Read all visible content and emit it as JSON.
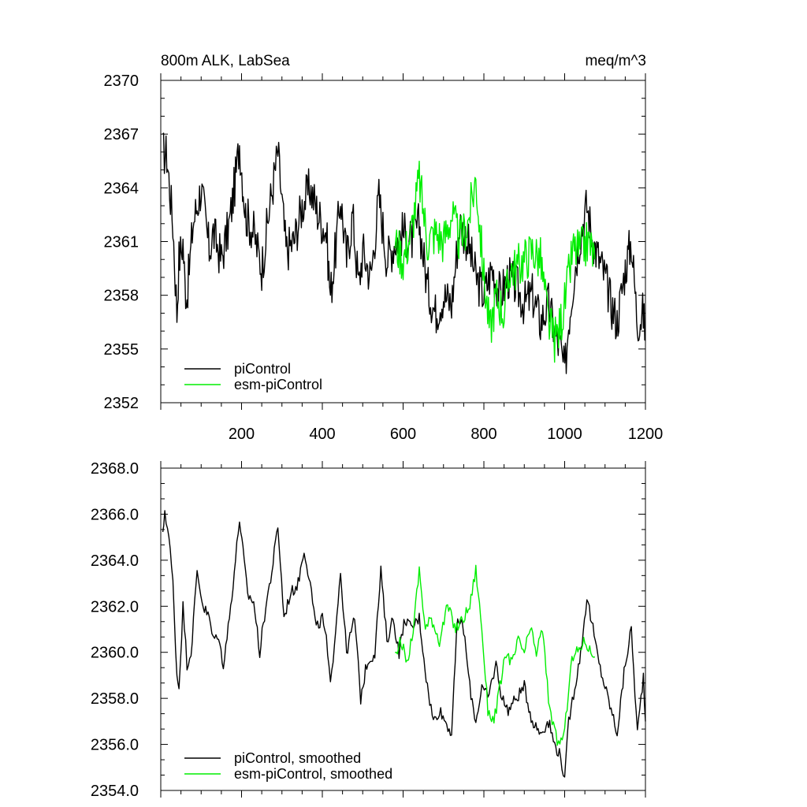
{
  "chart_data": [
    {
      "type": "line",
      "title_left": "800m ALK, LabSea",
      "title_right": "meq/m^3",
      "xlim": [
        0,
        1200
      ],
      "ylim": [
        2352,
        2370
      ],
      "xticks": [
        200,
        400,
        600,
        800,
        1000,
        1200
      ],
      "xtick_labels": [
        "200",
        "400",
        "600",
        "800",
        "1000",
        "1200"
      ],
      "yticks": [
        2352,
        2355,
        2358,
        2361,
        2364,
        2367,
        2370
      ],
      "ytick_labels": [
        "2352",
        "2355",
        "2358",
        "2361",
        "2364",
        "2367",
        "2370"
      ],
      "legend_position": "bottom-left",
      "series": [
        {
          "name": "piControl",
          "color": "#000000",
          "points": [
            [
              5,
              2366.0
            ],
            [
              15,
              2365.8
            ],
            [
              20,
              2364.5
            ],
            [
              30,
              2362.0
            ],
            [
              40,
              2357.0
            ],
            [
              45,
              2360.0
            ],
            [
              55,
              2361.0
            ],
            [
              60,
              2358.5
            ],
            [
              65,
              2358.0
            ],
            [
              80,
              2362.0
            ],
            [
              100,
              2364.0
            ],
            [
              120,
              2360.5
            ],
            [
              130,
              2361.5
            ],
            [
              150,
              2360.0
            ],
            [
              170,
              2362.0
            ],
            [
              185,
              2364.5
            ],
            [
              195,
              2366.5
            ],
            [
              210,
              2362.5
            ],
            [
              230,
              2361.5
            ],
            [
              250,
              2359.5
            ],
            [
              270,
              2363.0
            ],
            [
              290,
              2366.0
            ],
            [
              310,
              2360.5
            ],
            [
              330,
              2361.0
            ],
            [
              350,
              2363.0
            ],
            [
              370,
              2364.0
            ],
            [
              390,
              2362.5
            ],
            [
              410,
              2361.5
            ],
            [
              420,
              2358.0
            ],
            [
              435,
              2361.0
            ],
            [
              445,
              2363.5
            ],
            [
              460,
              2360.0
            ],
            [
              475,
              2362.5
            ],
            [
              490,
              2358.5
            ],
            [
              500,
              2360.5
            ],
            [
              520,
              2359.0
            ],
            [
              540,
              2363.5
            ],
            [
              560,
              2360.0
            ],
            [
              580,
              2361.0
            ],
            [
              600,
              2361.5
            ],
            [
              620,
              2361.0
            ],
            [
              640,
              2362.0
            ],
            [
              660,
              2358.5
            ],
            [
              680,
              2357.0
            ],
            [
              700,
              2358.0
            ],
            [
              720,
              2357.5
            ],
            [
              740,
              2362.0
            ],
            [
              760,
              2361.0
            ],
            [
              780,
              2359.0
            ],
            [
              800,
              2358.0
            ],
            [
              820,
              2359.5
            ],
            [
              840,
              2358.0
            ],
            [
              860,
              2359.0
            ],
            [
              880,
              2358.5
            ],
            [
              900,
              2357.5
            ],
            [
              920,
              2358.0
            ],
            [
              940,
              2356.5
            ],
            [
              960,
              2357.5
            ],
            [
              980,
              2355.5
            ],
            [
              990,
              2355.0
            ],
            [
              1000,
              2353.6
            ],
            [
              1010,
              2356.5
            ],
            [
              1025,
              2359.5
            ],
            [
              1040,
              2361.5
            ],
            [
              1055,
              2363.0
            ],
            [
              1070,
              2361.0
            ],
            [
              1085,
              2360.0
            ],
            [
              1100,
              2359.0
            ],
            [
              1115,
              2357.5
            ],
            [
              1130,
              2356.5
            ],
            [
              1150,
              2359.5
            ],
            [
              1165,
              2361.0
            ],
            [
              1180,
              2356.5
            ],
            [
              1195,
              2357.0
            ],
            [
              1200,
              2355.5
            ]
          ]
        },
        {
          "name": "esm-piControl",
          "color": "#00ee00",
          "points": [
            [
              580,
              2361.0
            ],
            [
              600,
              2360.0
            ],
            [
              620,
              2361.5
            ],
            [
              640,
              2364.5
            ],
            [
              660,
              2361.0
            ],
            [
              680,
              2361.5
            ],
            [
              700,
              2361.0
            ],
            [
              720,
              2362.5
            ],
            [
              740,
              2361.0
            ],
            [
              760,
              2362.0
            ],
            [
              780,
              2364.5
            ],
            [
              800,
              2359.0
            ],
            [
              815,
              2356.0
            ],
            [
              830,
              2358.0
            ],
            [
              850,
              2357.0
            ],
            [
              865,
              2359.5
            ],
            [
              880,
              2359.5
            ],
            [
              900,
              2360.0
            ],
            [
              920,
              2360.5
            ],
            [
              940,
              2360.0
            ],
            [
              960,
              2356.5
            ],
            [
              975,
              2355.5
            ],
            [
              985,
              2356.0
            ],
            [
              1000,
              2357.5
            ],
            [
              1020,
              2360.5
            ],
            [
              1040,
              2360.5
            ],
            [
              1060,
              2361.0
            ],
            [
              1075,
              2360.0
            ]
          ]
        }
      ]
    },
    {
      "type": "line",
      "xlim": [
        0,
        1200
      ],
      "ylim": [
        2354,
        2368
      ],
      "yticks": [
        2354,
        2356,
        2358,
        2360,
        2362,
        2364,
        2366,
        2368
      ],
      "ytick_labels": [
        "2354.0",
        "2356.0",
        "2358.0",
        "2360.0",
        "2362.0",
        "2364.0",
        "2366.0",
        "2368.0"
      ],
      "legend_position": "bottom-left",
      "series": [
        {
          "name": "piControl, smoothed",
          "color": "#000000",
          "points": [
            [
              5,
              2365.0
            ],
            [
              10,
              2366.2
            ],
            [
              20,
              2365.0
            ],
            [
              30,
              2363.0
            ],
            [
              40,
              2359.0
            ],
            [
              45,
              2358.5
            ],
            [
              55,
              2362.0
            ],
            [
              65,
              2359.5
            ],
            [
              75,
              2360.0
            ],
            [
              90,
              2363.5
            ],
            [
              105,
              2362.0
            ],
            [
              120,
              2361.5
            ],
            [
              130,
              2360.5
            ],
            [
              140,
              2360.8
            ],
            [
              155,
              2359.5
            ],
            [
              170,
              2361.5
            ],
            [
              185,
              2364.0
            ],
            [
              195,
              2365.8
            ],
            [
              215,
              2362.5
            ],
            [
              230,
              2362.2
            ],
            [
              245,
              2360.0
            ],
            [
              260,
              2362.0
            ],
            [
              275,
              2363.5
            ],
            [
              290,
              2365.5
            ],
            [
              305,
              2361.5
            ],
            [
              320,
              2362.5
            ],
            [
              340,
              2363.0
            ],
            [
              355,
              2364.5
            ],
            [
              370,
              2363.0
            ],
            [
              385,
              2361.0
            ],
            [
              400,
              2361.5
            ],
            [
              410,
              2360.5
            ],
            [
              420,
              2358.5
            ],
            [
              430,
              2360.5
            ],
            [
              445,
              2363.5
            ],
            [
              460,
              2360.0
            ],
            [
              480,
              2361.5
            ],
            [
              495,
              2358.0
            ],
            [
              510,
              2359.5
            ],
            [
              530,
              2360.0
            ],
            [
              545,
              2363.5
            ],
            [
              560,
              2360.5
            ],
            [
              575,
              2361.5
            ],
            [
              590,
              2360.0
            ],
            [
              605,
              2361.5
            ],
            [
              620,
              2361.0
            ],
            [
              640,
              2361.5
            ],
            [
              660,
              2358.5
            ],
            [
              675,
              2357.0
            ],
            [
              690,
              2357.5
            ],
            [
              705,
              2357.0
            ],
            [
              720,
              2356.5
            ],
            [
              735,
              2361.5
            ],
            [
              750,
              2361.0
            ],
            [
              765,
              2358.5
            ],
            [
              780,
              2357.0
            ],
            [
              795,
              2358.5
            ],
            [
              810,
              2358.0
            ],
            [
              830,
              2359.5
            ],
            [
              845,
              2358.0
            ],
            [
              860,
              2357.5
            ],
            [
              880,
              2358.0
            ],
            [
              900,
              2358.5
            ],
            [
              920,
              2357.0
            ],
            [
              940,
              2356.5
            ],
            [
              960,
              2357.0
            ],
            [
              975,
              2356.0
            ],
            [
              990,
              2355.5
            ],
            [
              1000,
              2354.4
            ],
            [
              1010,
              2357.0
            ],
            [
              1025,
              2358.5
            ],
            [
              1040,
              2360.0
            ],
            [
              1055,
              2362.4
            ],
            [
              1070,
              2361.0
            ],
            [
              1085,
              2359.5
            ],
            [
              1100,
              2358.5
            ],
            [
              1115,
              2357.5
            ],
            [
              1130,
              2356.5
            ],
            [
              1150,
              2359.5
            ],
            [
              1165,
              2361.0
            ],
            [
              1180,
              2356.5
            ],
            [
              1195,
              2359.0
            ],
            [
              1200,
              2357.0
            ]
          ]
        },
        {
          "name": "esm-piControl, smoothed",
          "color": "#00ee00",
          "points": [
            [
              580,
              2360.0
            ],
            [
              595,
              2360.5
            ],
            [
              610,
              2359.5
            ],
            [
              625,
              2361.0
            ],
            [
              640,
              2363.6
            ],
            [
              655,
              2361.0
            ],
            [
              670,
              2361.5
            ],
            [
              690,
              2360.5
            ],
            [
              710,
              2362.0
            ],
            [
              730,
              2361.0
            ],
            [
              750,
              2361.5
            ],
            [
              765,
              2362.0
            ],
            [
              780,
              2363.6
            ],
            [
              795,
              2361.0
            ],
            [
              810,
              2357.5
            ],
            [
              825,
              2357.0
            ],
            [
              840,
              2358.5
            ],
            [
              855,
              2360.0
            ],
            [
              870,
              2359.5
            ],
            [
              885,
              2360.5
            ],
            [
              900,
              2360.0
            ],
            [
              915,
              2361.0
            ],
            [
              930,
              2360.0
            ],
            [
              945,
              2361.0
            ],
            [
              960,
              2358.0
            ],
            [
              975,
              2356.5
            ],
            [
              985,
              2356.0
            ],
            [
              1000,
              2356.5
            ],
            [
              1015,
              2359.5
            ],
            [
              1030,
              2360.0
            ],
            [
              1050,
              2360.5
            ],
            [
              1065,
              2360.0
            ],
            [
              1075,
              2359.8
            ]
          ]
        }
      ]
    }
  ]
}
